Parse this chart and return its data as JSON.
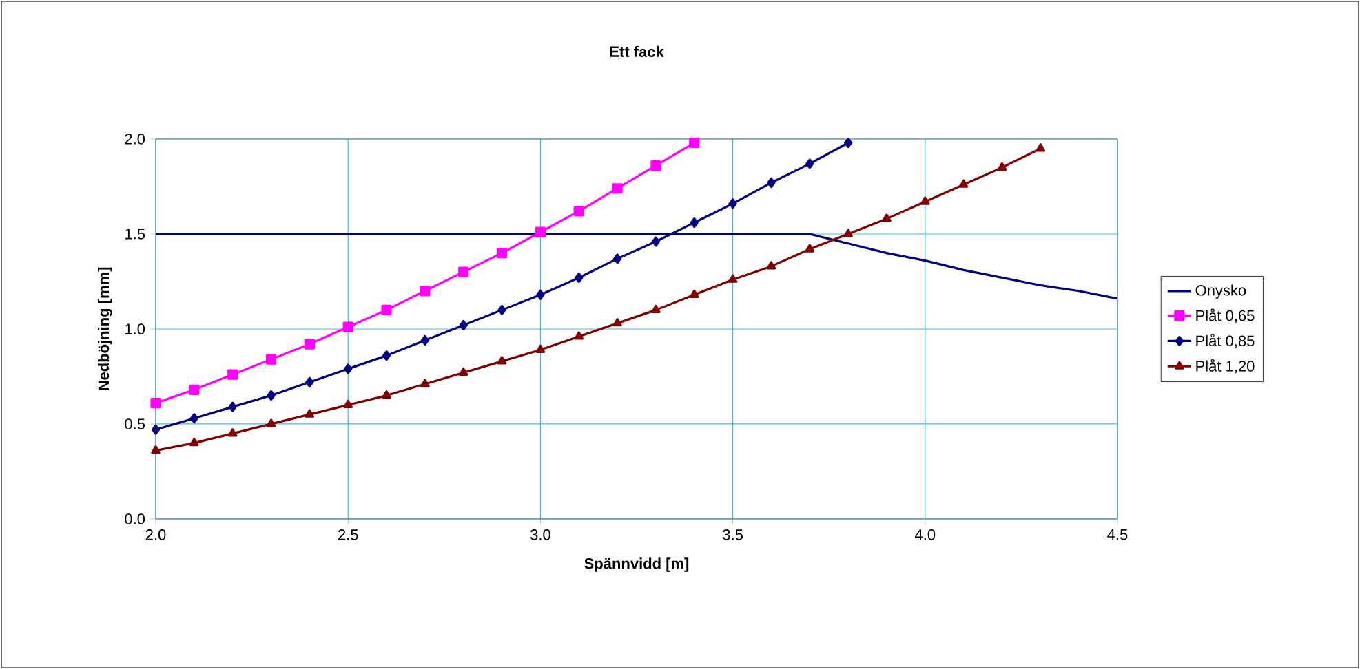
{
  "chart_data": {
    "type": "line",
    "title": "Ett fack",
    "xlabel": "Spännvidd [m]",
    "ylabel": "Nedböjning [mm]",
    "xlim": [
      2.0,
      4.5
    ],
    "ylim": [
      0.0,
      2.0
    ],
    "xticks": [
      {
        "value": 2.0,
        "label": "2.0"
      },
      {
        "value": 2.5,
        "label": "2.5"
      },
      {
        "value": 3.0,
        "label": "3.0"
      },
      {
        "value": 3.5,
        "label": "3.5"
      },
      {
        "value": 4.0,
        "label": "4.0"
      },
      {
        "value": 4.5,
        "label": "4.5"
      }
    ],
    "yticks": [
      {
        "value": 0.0,
        "label": "0.0"
      },
      {
        "value": 0.5,
        "label": "0.5"
      },
      {
        "value": 1.0,
        "label": "1.0"
      },
      {
        "value": 1.5,
        "label": "1.5"
      },
      {
        "value": 2.0,
        "label": "2.0"
      }
    ],
    "grid": true,
    "legend": "right",
    "line_style": "solid",
    "series": [
      {
        "name": "Onysko",
        "color": "#000080",
        "marker": "none",
        "x": [
          2.0,
          3.7,
          3.8,
          3.9,
          4.0,
          4.1,
          4.2,
          4.3,
          4.4,
          4.5
        ],
        "values": [
          1.5,
          1.5,
          1.45,
          1.4,
          1.36,
          1.31,
          1.27,
          1.23,
          1.2,
          1.16
        ]
      },
      {
        "name": "Plåt 0,65",
        "color": "#ff00ff",
        "marker": "square",
        "x": [
          2.0,
          2.1,
          2.2,
          2.3,
          2.4,
          2.5,
          2.6,
          2.7,
          2.8,
          2.9,
          3.0,
          3.1,
          3.2,
          3.3,
          3.4
        ],
        "values": [
          0.61,
          0.68,
          0.76,
          0.84,
          0.92,
          1.01,
          1.1,
          1.2,
          1.3,
          1.4,
          1.51,
          1.62,
          1.74,
          1.86,
          1.98
        ]
      },
      {
        "name": "Plåt 0,85",
        "color": "#000080",
        "marker": "diamond",
        "x": [
          2.0,
          2.1,
          2.2,
          2.3,
          2.4,
          2.5,
          2.6,
          2.7,
          2.8,
          2.9,
          3.0,
          3.1,
          3.2,
          3.3,
          3.4,
          3.5,
          3.6,
          3.7,
          3.8
        ],
        "values": [
          0.47,
          0.53,
          0.59,
          0.65,
          0.72,
          0.79,
          0.86,
          0.94,
          1.02,
          1.1,
          1.18,
          1.27,
          1.37,
          1.46,
          1.56,
          1.66,
          1.77,
          1.87,
          1.98
        ]
      },
      {
        "name": "Plåt 1,20",
        "color": "#800000",
        "marker": "triangle",
        "x": [
          2.0,
          2.1,
          2.2,
          2.3,
          2.4,
          2.5,
          2.6,
          2.7,
          2.8,
          2.9,
          3.0,
          3.1,
          3.2,
          3.3,
          3.4,
          3.5,
          3.6,
          3.7,
          3.8,
          3.9,
          4.0,
          4.1,
          4.2,
          4.3
        ],
        "values": [
          0.36,
          0.4,
          0.45,
          0.5,
          0.55,
          0.6,
          0.65,
          0.71,
          0.77,
          0.83,
          0.89,
          0.96,
          1.03,
          1.1,
          1.18,
          1.26,
          1.33,
          1.42,
          1.5,
          1.58,
          1.67,
          1.76,
          1.85,
          1.95
        ]
      }
    ]
  }
}
